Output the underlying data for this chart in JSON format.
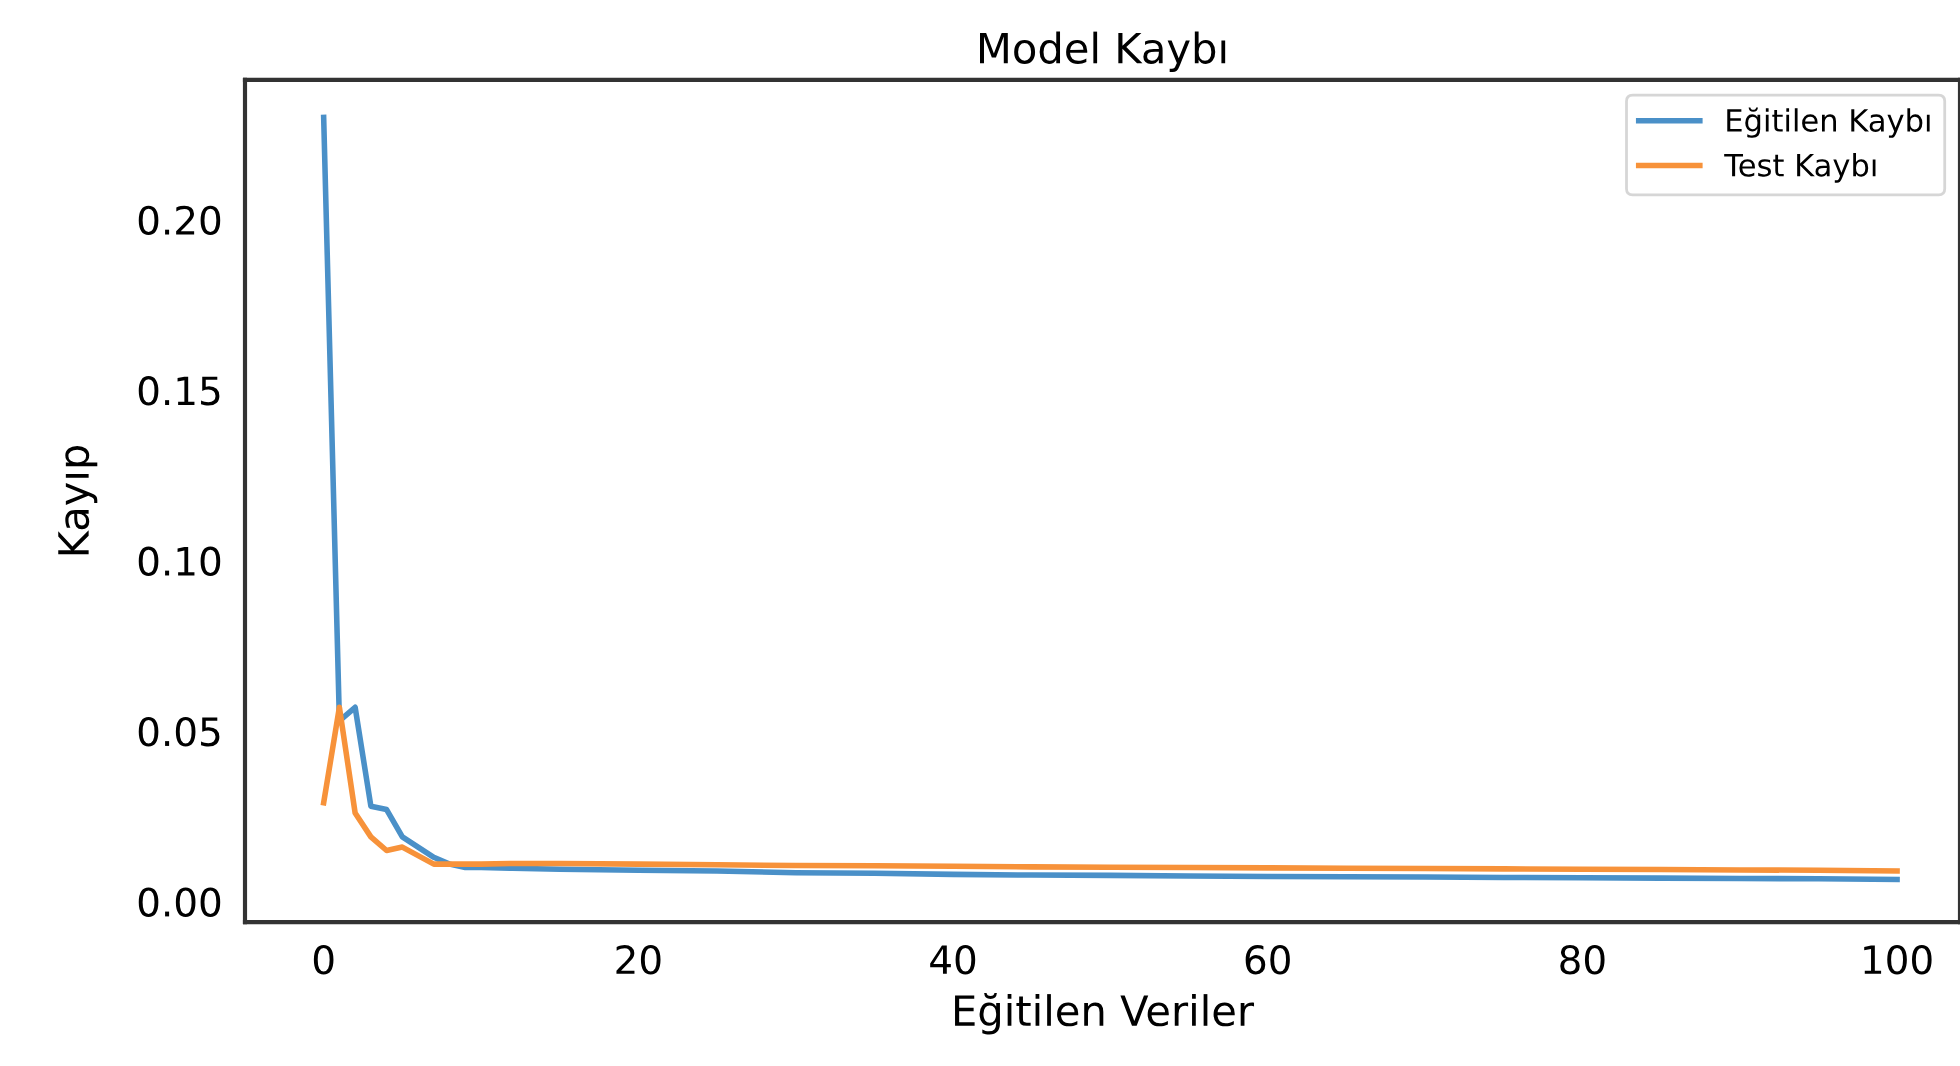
{
  "chart_data": {
    "type": "line",
    "title": "Model Kaybı",
    "xlabel": "Eğitilen Veriler",
    "ylabel": "Kayıp",
    "xlim": [
      -5,
      104
    ],
    "ylim": [
      -0.006,
      0.241
    ],
    "xticks": [
      0,
      20,
      40,
      60,
      80,
      100
    ],
    "yticks": [
      {
        "value": 0,
        "label": "0.00"
      },
      {
        "value": 0.05,
        "label": "0.05"
      },
      {
        "value": 0.1,
        "label": "0.10"
      },
      {
        "value": 0.15,
        "label": "0.15"
      },
      {
        "value": 0.2,
        "label": "0.20"
      }
    ],
    "grid": false,
    "legend": "top right",
    "marker": "none",
    "line_style": "solid",
    "series": [
      {
        "name": "Eğitilen Kaybı",
        "color": "#4a90c8",
        "x": [
          0,
          1,
          2,
          3,
          4,
          5,
          6,
          7,
          8,
          9,
          10,
          12,
          15,
          20,
          25,
          30,
          35,
          40,
          45,
          50,
          55,
          60,
          65,
          70,
          75,
          80,
          85,
          90,
          95,
          100
        ],
        "values": [
          0.23,
          0.053,
          0.057,
          0.028,
          0.027,
          0.019,
          0.016,
          0.013,
          0.011,
          0.01,
          0.01,
          0.0098,
          0.0095,
          0.0092,
          0.009,
          0.0085,
          0.0083,
          0.008,
          0.0078,
          0.0077,
          0.0075,
          0.0074,
          0.0073,
          0.0072,
          0.0071,
          0.007,
          0.0069,
          0.0068,
          0.0067,
          0.0065
        ]
      },
      {
        "name": "Test Kaybı",
        "color": "#f7923a",
        "x": [
          0,
          1,
          2,
          3,
          4,
          5,
          6,
          7,
          8,
          9,
          10,
          12,
          15,
          20,
          25,
          30,
          35,
          40,
          45,
          50,
          55,
          60,
          65,
          70,
          75,
          80,
          85,
          90,
          95,
          100
        ],
        "values": [
          0.029,
          0.057,
          0.026,
          0.019,
          0.015,
          0.016,
          0.0135,
          0.011,
          0.011,
          0.011,
          0.011,
          0.0112,
          0.0112,
          0.011,
          0.0108,
          0.0106,
          0.0105,
          0.0104,
          0.0102,
          0.0101,
          0.01,
          0.0099,
          0.0098,
          0.0097,
          0.0096,
          0.0095,
          0.0094,
          0.0093,
          0.0092,
          0.009
        ]
      }
    ]
  }
}
